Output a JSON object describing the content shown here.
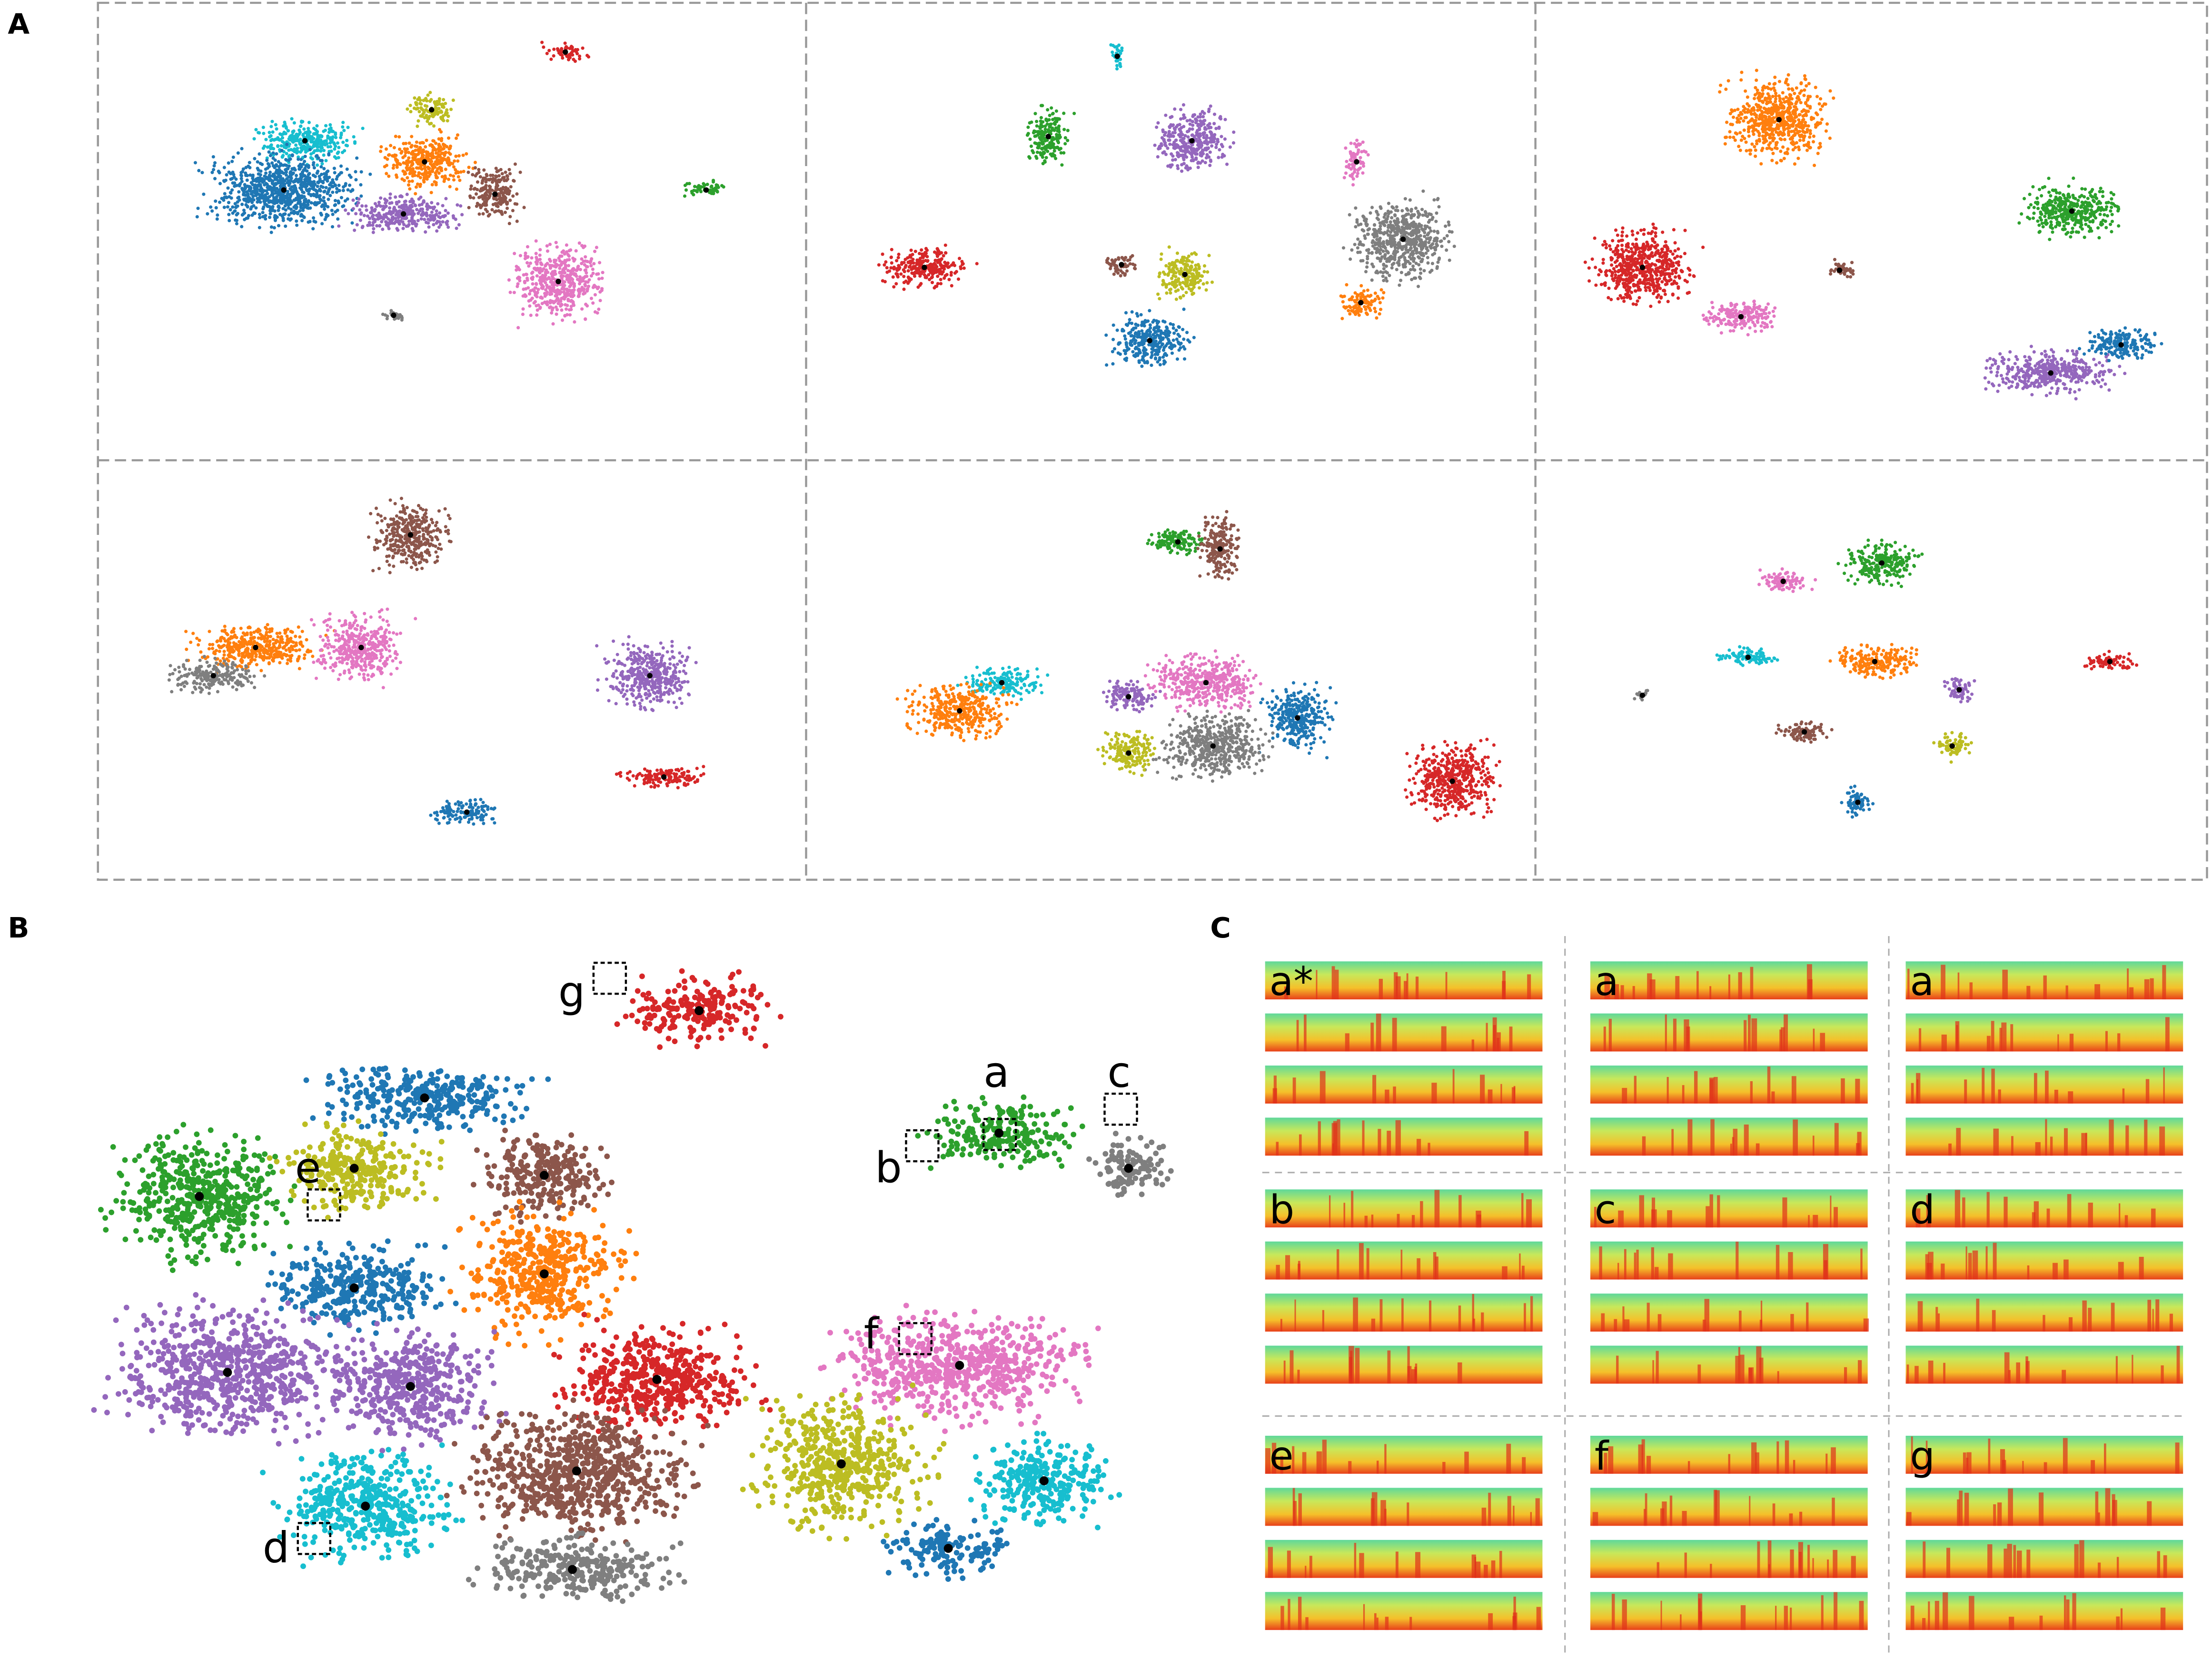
{
  "panel_labels": [
    "A",
    "B",
    "C"
  ],
  "cluster_labels": [
    "a",
    "b",
    "c",
    "d",
    "e",
    "f",
    "g"
  ],
  "spectrogram_labels": [
    "a*",
    "a",
    "a",
    "b",
    "c",
    "d",
    "e",
    "f",
    "g"
  ]
}
